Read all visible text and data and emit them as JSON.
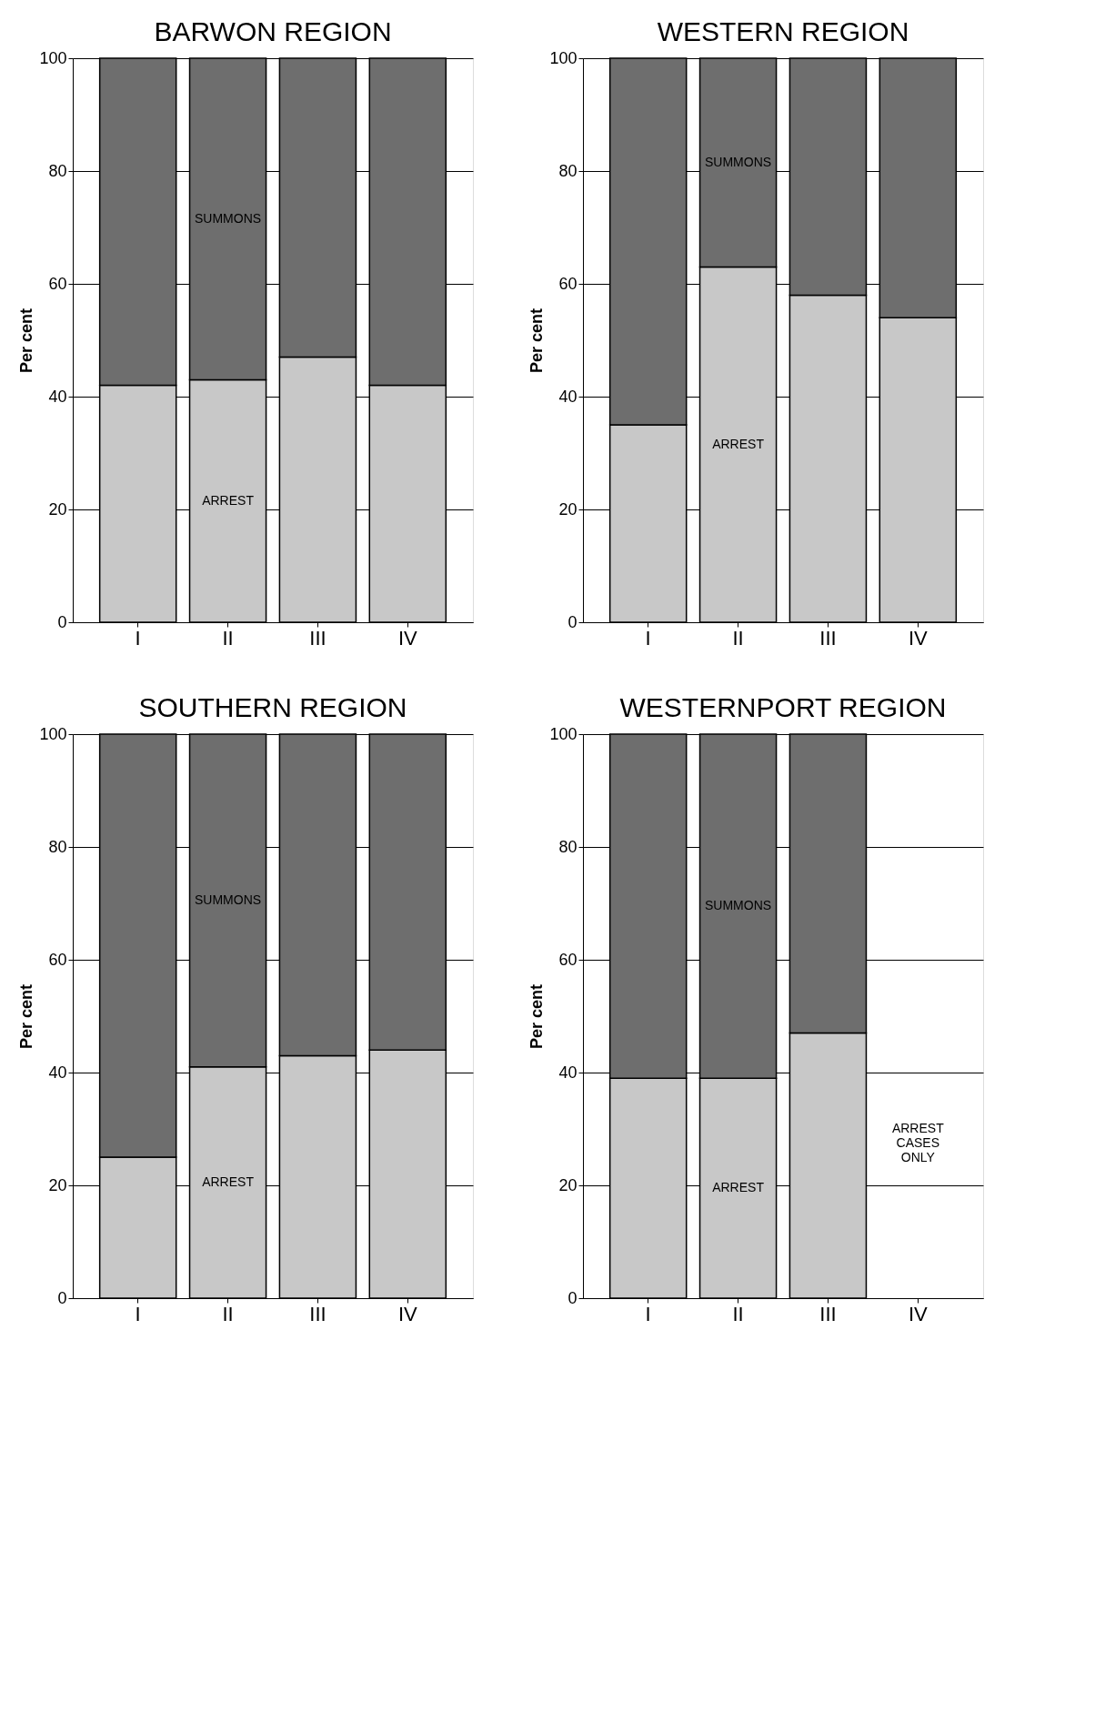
{
  "chart_data": [
    {
      "type": "bar",
      "stacked": true,
      "title": "BARWON REGION",
      "ylabel": "Per cent",
      "categories": [
        "I",
        "II",
        "III",
        "IV"
      ],
      "ylim": [
        0,
        100
      ],
      "yticks": [
        0,
        20,
        40,
        60,
        80,
        100
      ],
      "grid": "y",
      "series": [
        {
          "name": "ARREST",
          "color": "#c8c8c8",
          "values": [
            42,
            43,
            47,
            42
          ]
        },
        {
          "name": "SUMMONS",
          "color": "#6e6e6e",
          "values": [
            58,
            57,
            53,
            58
          ]
        }
      ]
    },
    {
      "type": "bar",
      "stacked": true,
      "title": "WESTERN REGION",
      "ylabel": "Per cent",
      "categories": [
        "I",
        "II",
        "III",
        "IV"
      ],
      "ylim": [
        0,
        100
      ],
      "yticks": [
        0,
        20,
        40,
        60,
        80,
        100
      ],
      "grid": "y",
      "series": [
        {
          "name": "ARREST",
          "color": "#c8c8c8",
          "values": [
            35,
            63,
            58,
            54
          ]
        },
        {
          "name": "SUMMONS",
          "color": "#6e6e6e",
          "values": [
            65,
            37,
            42,
            46
          ]
        }
      ]
    },
    {
      "type": "bar",
      "stacked": true,
      "title": "SOUTHERN REGION",
      "ylabel": "Per cent",
      "categories": [
        "I",
        "II",
        "III",
        "IV"
      ],
      "ylim": [
        0,
        100
      ],
      "yticks": [
        0,
        20,
        40,
        60,
        80,
        100
      ],
      "grid": "y",
      "series": [
        {
          "name": "ARREST",
          "color": "#c8c8c8",
          "values": [
            25,
            41,
            43,
            44
          ]
        },
        {
          "name": "SUMMONS",
          "color": "#6e6e6e",
          "values": [
            75,
            59,
            57,
            56
          ]
        }
      ]
    },
    {
      "type": "bar",
      "stacked": true,
      "title": "WESTERNPORT REGION",
      "ylabel": "Per cent",
      "categories": [
        "I",
        "II",
        "III",
        "IV"
      ],
      "ylim": [
        0,
        100
      ],
      "yticks": [
        0,
        20,
        40,
        60,
        80,
        100
      ],
      "grid": "y",
      "annotations": [
        "ARREST CASES ONLY"
      ],
      "series": [
        {
          "name": "ARREST",
          "color": "#c8c8c8",
          "values": [
            39,
            39,
            47,
            null
          ]
        },
        {
          "name": "SUMMONS",
          "color": "#6e6e6e",
          "values": [
            61,
            61,
            53,
            null
          ]
        }
      ]
    }
  ]
}
